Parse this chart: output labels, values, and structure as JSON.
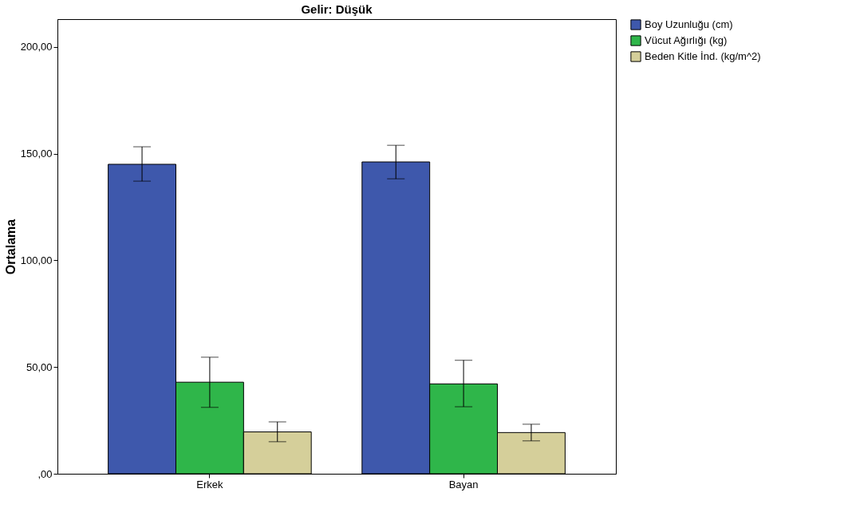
{
  "chart_data": {
    "type": "bar",
    "title": "Gelir: Düşük",
    "ylabel": "Ortalama",
    "categories": [
      "Erkek",
      "Bayan"
    ],
    "series": [
      {
        "name": "Boy Uzunluğu (cm)",
        "color": "#3e58ac",
        "values": [
          145,
          146.1
        ],
        "errors": [
          [
            137.1,
            153.2
          ],
          [
            138.2,
            153.9
          ]
        ]
      },
      {
        "name": "Vücut Ağırlığı (kg)",
        "color": "#2fb64a",
        "values": [
          42.9,
          42.1
        ],
        "errors": [
          [
            31.1,
            54.6
          ],
          [
            31.4,
            53.2
          ]
        ]
      },
      {
        "name": "Beden Kitle İnd. (kg/m^2)",
        "color": "#d5cf9a",
        "values": [
          19.6,
          19.3
        ],
        "errors": [
          [
            15.0,
            24.3
          ],
          [
            15.4,
            23.2
          ]
        ]
      }
    ],
    "ylim": [
      0,
      213
    ],
    "yticks": [
      {
        "value": 0,
        "label": ",00"
      },
      {
        "value": 50,
        "label": "50,00"
      },
      {
        "value": 100,
        "label": "100,00"
      },
      {
        "value": 150,
        "label": "150,00"
      },
      {
        "value": 200,
        "label": "200,00"
      }
    ],
    "grid": false,
    "legend": "top right"
  }
}
